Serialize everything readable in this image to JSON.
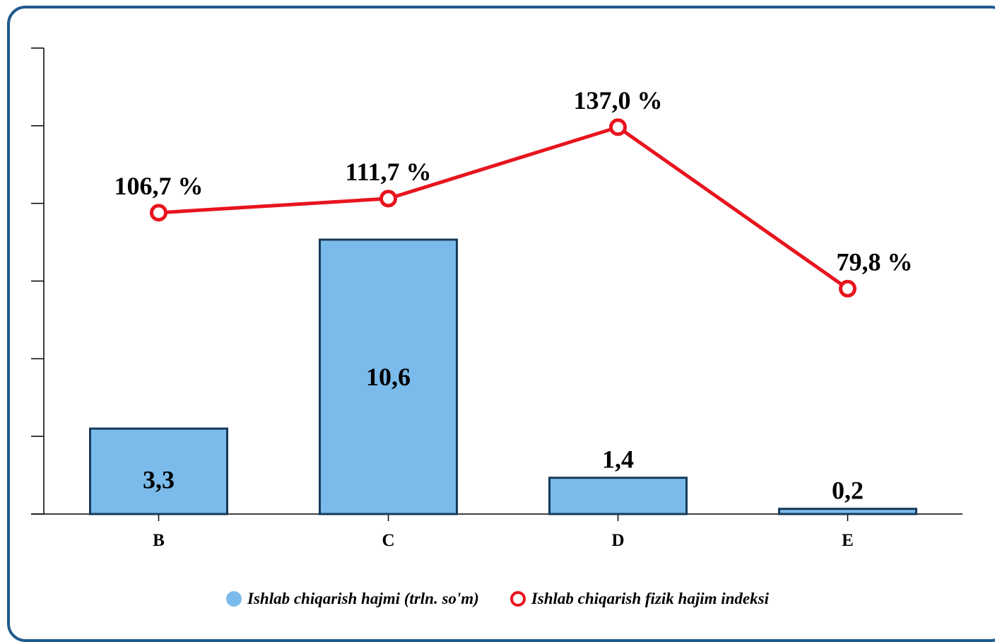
{
  "chart_data": {
    "type": "bar",
    "categories": [
      "B",
      "C",
      "D",
      "E"
    ],
    "series": [
      {
        "name": "Ishlab chiqarish hajmi (trln. so'm)",
        "type": "bar",
        "values": [
          3.3,
          10.6,
          1.4,
          0.2
        ],
        "labels": [
          "3,3",
          "10,6",
          "1,4",
          "0,2"
        ],
        "color": "#7bbbeb"
      },
      {
        "name": "Ishlab chiqarish fizik hajim indeksi",
        "type": "line",
        "values": [
          106.7,
          111.7,
          137.0,
          79.8
        ],
        "labels": [
          "106,7 %",
          "111,7 %",
          "137,0 %",
          "79,8 %"
        ],
        "color": "#e8141e"
      }
    ],
    "ylim": [
      0,
      18
    ],
    "y2lim": [
      0,
      165
    ],
    "grid": false,
    "legend_position": "bottom"
  },
  "colors": {
    "frame": "#1f5a8c",
    "bar_fill": "#7bbbeb",
    "bar_stroke": "#163a5a",
    "line": "#e8141e"
  }
}
